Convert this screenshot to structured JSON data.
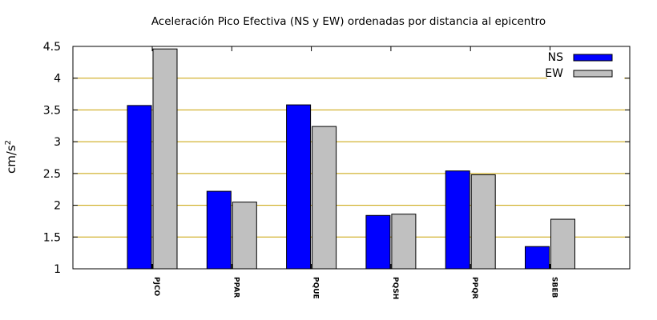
{
  "chart_data": {
    "type": "bar",
    "title": "Aceleración Pico Efectiva (NS y EW) ordenadas por distancia al epicentro",
    "ylabel": "cm/s",
    "ylabel_superscript": "2",
    "xlabel": "",
    "categories": [
      "PJCO",
      "PPAR",
      "PQUE",
      "PQSH",
      "PPQR",
      "SBEB"
    ],
    "series": [
      {
        "name": "NS",
        "color": "#0000ff",
        "values": [
          3.57,
          2.22,
          3.58,
          1.84,
          2.54,
          1.35
        ]
      },
      {
        "name": "EW",
        "color": "#c0c0c0",
        "values": [
          4.46,
          2.05,
          3.24,
          1.86,
          2.48,
          1.78
        ]
      }
    ],
    "ylim": [
      1,
      4.5
    ],
    "yticks": [
      "1",
      "1.5",
      "2",
      "2.5",
      "3",
      "3.5",
      "4",
      "4.5"
    ],
    "grid": true,
    "grid_color": "#c8a000",
    "legend_position": "top-right"
  }
}
